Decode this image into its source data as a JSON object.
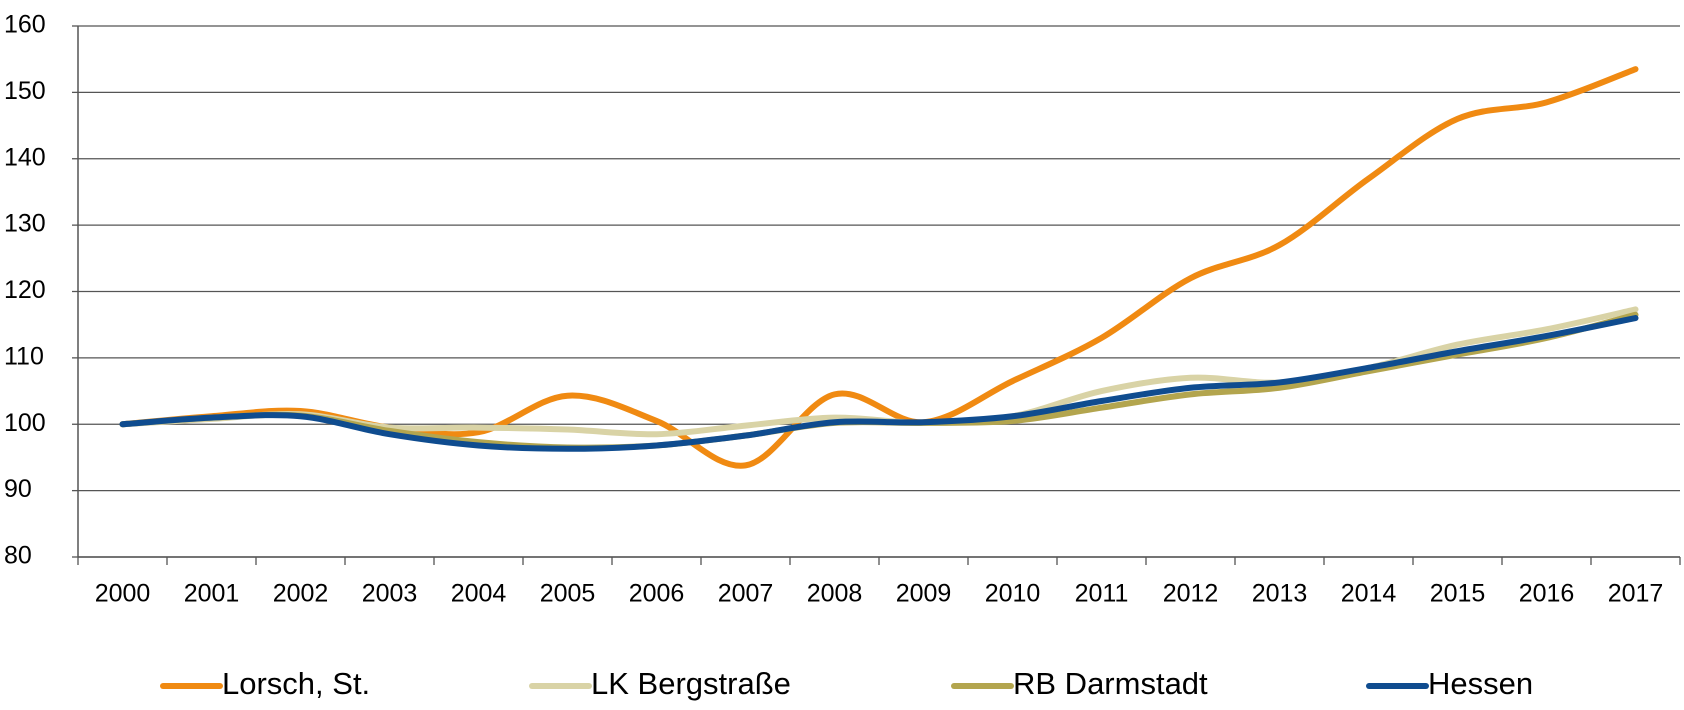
{
  "chart_data": {
    "type": "line",
    "categories": [
      "2000",
      "2001",
      "2002",
      "2003",
      "2004",
      "2005",
      "2006",
      "2007",
      "2008",
      "2009",
      "2010",
      "2011",
      "2012",
      "2013",
      "2014",
      "2015",
      "2016",
      "2017"
    ],
    "series": [
      {
        "name": "Lorsch, St.",
        "color": "#f08a12",
        "values": [
          100,
          101.2,
          102,
          99.5,
          98.8,
          104.3,
          100.5,
          93.8,
          104.5,
          100.3,
          106.5,
          113,
          122,
          127,
          137,
          146,
          148.5,
          153.5
        ]
      },
      {
        "name": "LK Bergstraße",
        "color": "#d9d3a6",
        "values": [
          100,
          100.8,
          101.5,
          99.5,
          99.5,
          99.2,
          98.5,
          99.8,
          101,
          100.2,
          101.2,
          105,
          107,
          106.3,
          108.5,
          112,
          114.3,
          117.3
        ]
      },
      {
        "name": "RB Darmstadt",
        "color": "#b3a54e",
        "values": [
          100,
          101,
          101.3,
          99,
          97.3,
          96.5,
          96.8,
          98.3,
          100.2,
          100.2,
          100.5,
          102.5,
          104.5,
          105.5,
          108,
          110.5,
          113,
          116.5
        ]
      },
      {
        "name": "Hessen",
        "color": "#0f4c8f",
        "values": [
          100,
          101,
          101.2,
          98.5,
          96.8,
          96.3,
          96.8,
          98.3,
          100.3,
          100.3,
          101.2,
          103.5,
          105.5,
          106.3,
          108.5,
          111,
          113.3,
          116
        ]
      }
    ],
    "ylim": [
      80,
      160
    ],
    "yticks": [
      80,
      90,
      100,
      110,
      120,
      130,
      140,
      150,
      160
    ],
    "grid": true
  }
}
